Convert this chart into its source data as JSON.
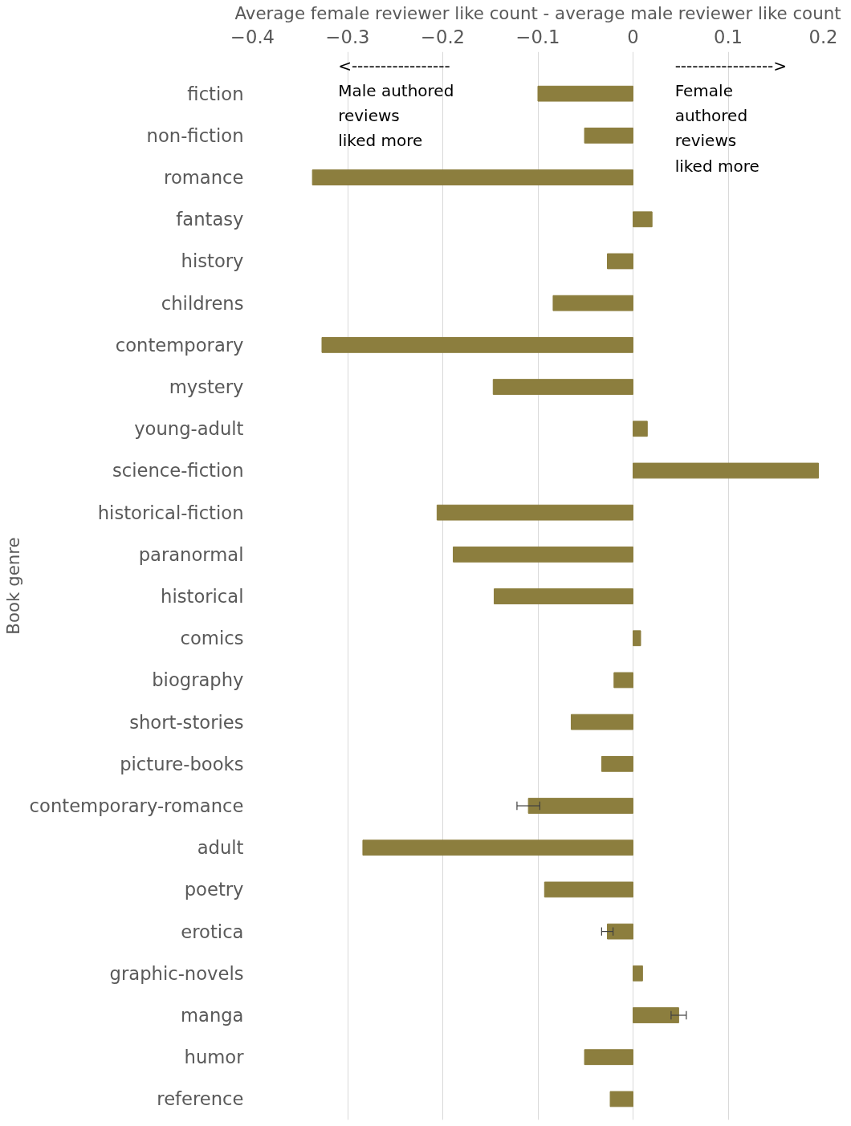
{
  "chart_data": {
    "type": "bar",
    "orientation": "horizontal",
    "xlabel": "Average female reviewer like count - average male reviewer like count",
    "ylabel": "Book genre",
    "categories": [
      "fiction",
      "non-fiction",
      "romance",
      "fantasy",
      "history",
      "childrens",
      "contemporary",
      "mystery",
      "young-adult",
      "science-fiction",
      "historical-fiction",
      "paranormal",
      "historical",
      "comics",
      "biography",
      "short-stories",
      "picture-books",
      "contemporary-romance",
      "adult",
      "poetry",
      "erotica",
      "graphic-novels",
      "manga",
      "humor",
      "reference"
    ],
    "values": [
      -0.1,
      -0.051,
      -0.337,
      0.02,
      -0.027,
      -0.084,
      -0.327,
      -0.147,
      0.015,
      0.195,
      -0.206,
      -0.189,
      -0.146,
      0.008,
      -0.02,
      -0.065,
      -0.033,
      -0.11,
      -0.284,
      -0.093,
      -0.027,
      0.01,
      0.048,
      -0.051,
      -0.024
    ],
    "errors": [
      null,
      null,
      null,
      null,
      null,
      null,
      null,
      null,
      null,
      null,
      null,
      null,
      null,
      null,
      null,
      null,
      null,
      0.012,
      null,
      null,
      0.006,
      null,
      0.008,
      null,
      null
    ],
    "color": "#8c7e3e",
    "xlim": [
      -0.4,
      0.2
    ],
    "xticks": [
      -0.4,
      -0.3,
      -0.2,
      -0.1,
      0,
      0.1,
      0.2
    ],
    "grid": "x",
    "annotations": [
      "<-----------------\nMale authored\nreviews\nliked more",
      "----------------->\nFemale\nauthored\nreviews\nliked more"
    ]
  }
}
